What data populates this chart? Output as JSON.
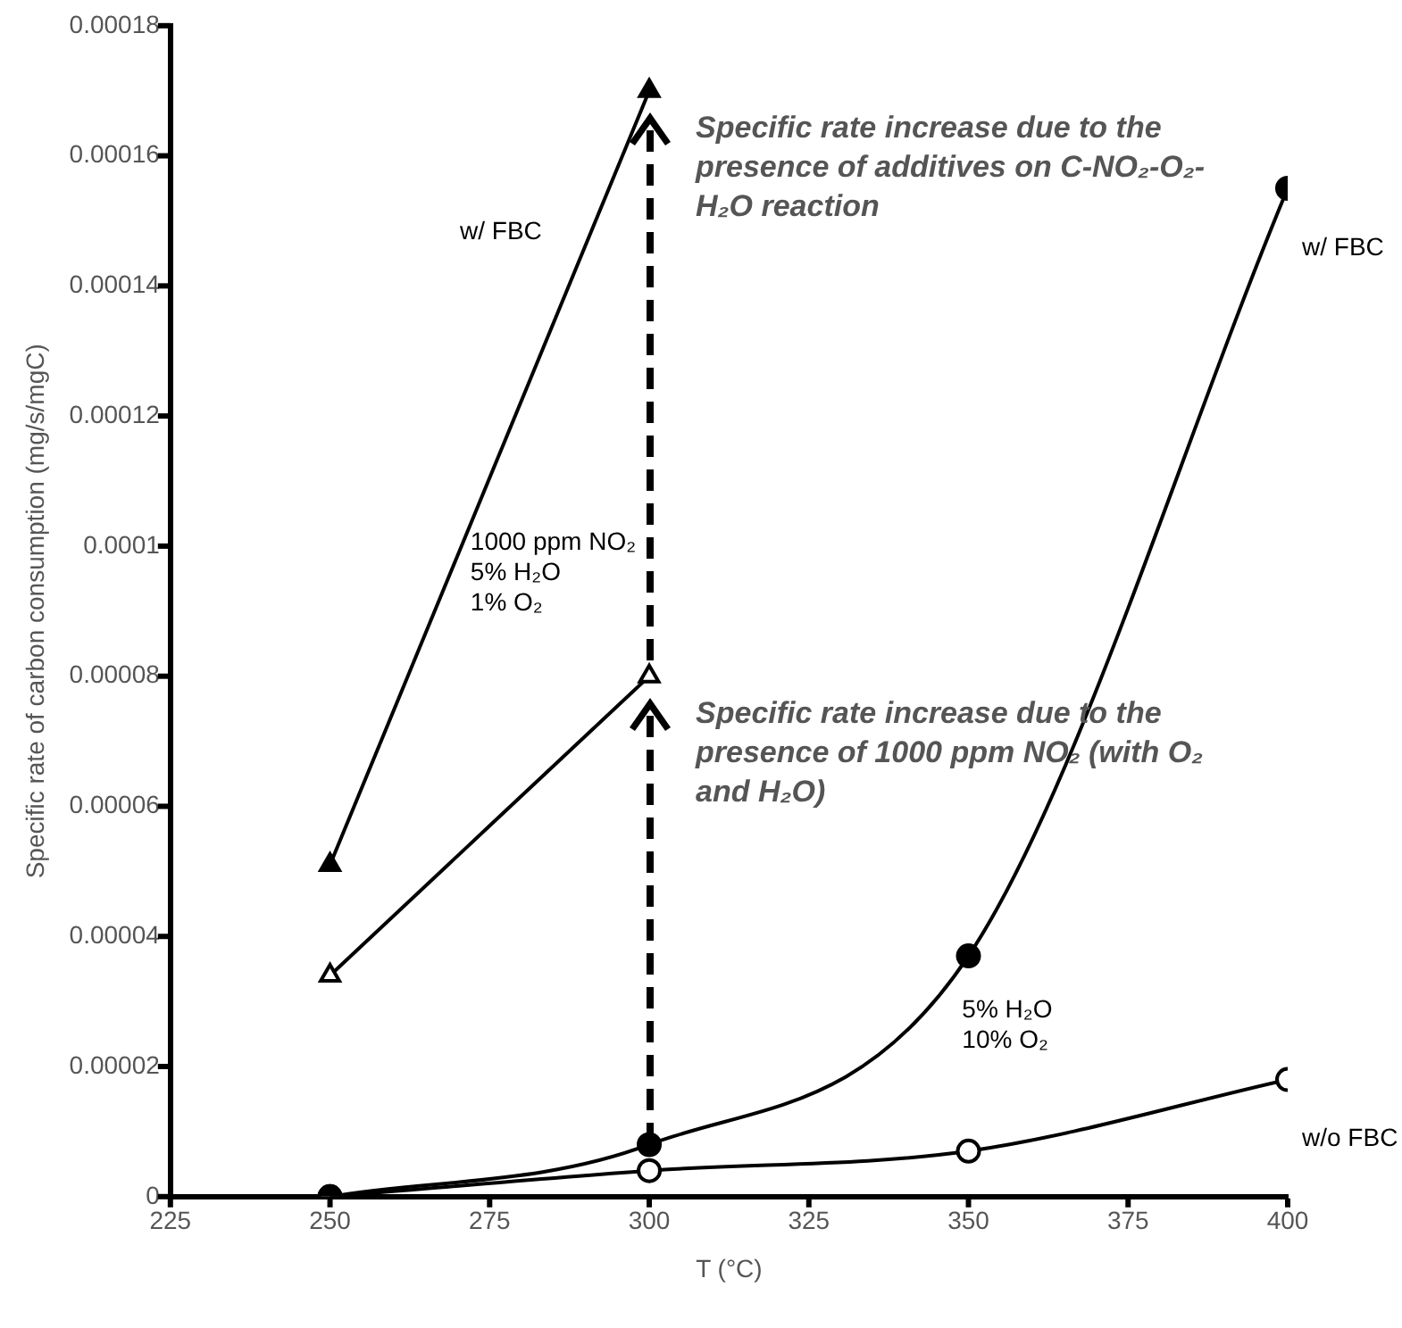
{
  "chart_data": {
    "type": "line",
    "xlabel": "T (°C)",
    "ylabel": "Specific rate of carbon consumption (mg/s/mgC)",
    "xlim": [
      225,
      400
    ],
    "xticks": [
      225,
      250,
      275,
      300,
      325,
      350,
      375,
      400
    ],
    "ylim": [
      0,
      0.00018
    ],
    "yticks": [
      0,
      {
        "value": 2e-05,
        "label": "0.00002"
      },
      {
        "value": 4e-05,
        "label": "0.00004"
      },
      {
        "value": 6e-05,
        "label": "0.00006"
      },
      {
        "value": 8e-05,
        "label": "0.00008"
      },
      0.0001,
      0.00012,
      0.00014,
      0.00016,
      0.00018
    ],
    "grid": false,
    "legend": false,
    "line_style": "solid",
    "series": [
      {
        "name": "w/ FBC",
        "color": "#000000",
        "marker": "triangle",
        "x": [
          250,
          300
        ],
        "values": [
          5.1e-05,
          0.00017
        ]
      },
      {
        "color": "#000000",
        "marker": "triangle",
        "x": [
          250,
          300
        ],
        "values": [
          3.4e-05,
          8e-05
        ]
      },
      {
        "name": "w/ FBC",
        "color": "#000000",
        "marker": "circle",
        "x": [
          250,
          300,
          350,
          400
        ],
        "values": [
          0,
          8e-06,
          3.7e-05,
          0.000155
        ]
      },
      {
        "name": "w/o FBC",
        "color": "#000000",
        "marker": "circle",
        "x": [
          250,
          300,
          350,
          400
        ],
        "values": [
          0,
          4e-06,
          7e-06,
          1.8e-05
        ]
      }
    ],
    "annotations": [
      {
        "text": "Specific rate increase due to the presence of additives on C-NO₂-O₂-H₂O reaction",
        "x": 300,
        "y": 0.00017
      },
      {
        "text": "Specific rate increase due to the presence of 1000 ppm NO₂ (with O₂ and H₂O)",
        "x": 300,
        "y": 8e-05
      },
      "1000 ppm NO₂\n5% H₂O\n1% O₂",
      "5% H₂O\n10% O₂"
    ]
  }
}
